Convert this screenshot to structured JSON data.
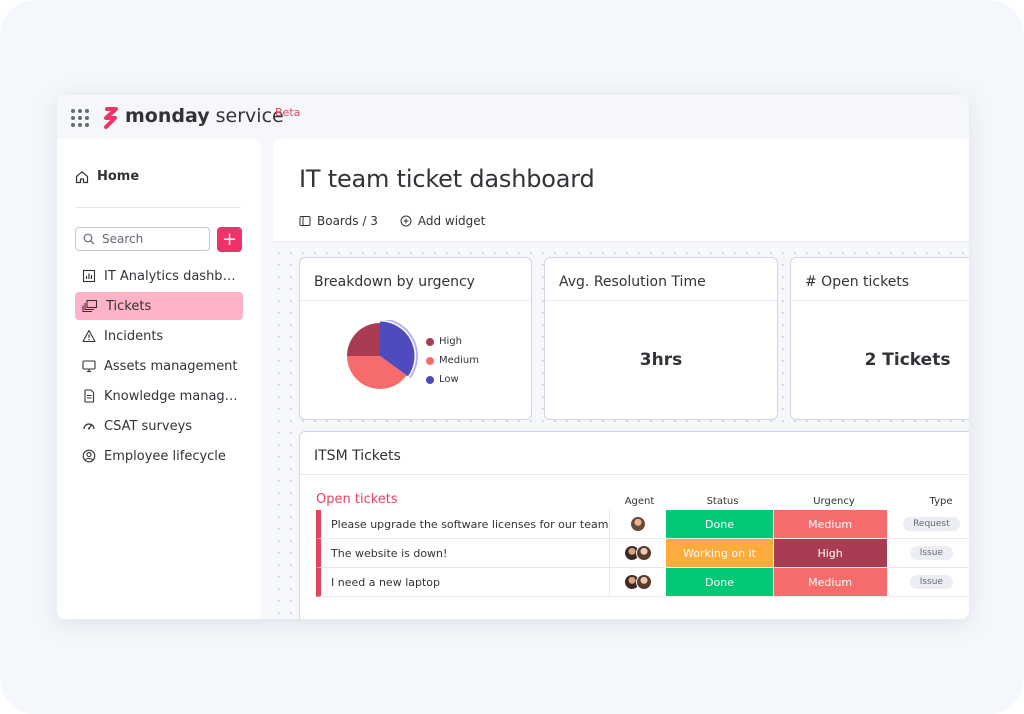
{
  "app": {
    "brand_bold": "monday",
    "brand_light": "service",
    "badge": "Beta",
    "accent": "#f0326b"
  },
  "sidebar": {
    "home_label": "Home",
    "search_placeholder": "Search",
    "add_label": "+",
    "items": [
      {
        "label": "IT Analytics dashboard",
        "icon": "bar-chart-icon"
      },
      {
        "label": "Tickets",
        "icon": "tickets-icon",
        "active": true
      },
      {
        "label": "Incidents",
        "icon": "warning-icon"
      },
      {
        "label": "Assets management",
        "icon": "monitor-icon"
      },
      {
        "label": "Knowledge manag…",
        "icon": "document-icon"
      },
      {
        "label": "CSAT surveys",
        "icon": "gauge-icon"
      },
      {
        "label": "Employee lifecycle",
        "icon": "user-circle-icon"
      }
    ]
  },
  "header": {
    "title": "IT team ticket dashboard",
    "boards_label": "Boards / 3",
    "add_widget_label": "Add widget"
  },
  "widgets": {
    "urgency": {
      "title": "Breakdown by urgency",
      "legend": [
        {
          "label": "High",
          "color": "#a93b52"
        },
        {
          "label": "Medium",
          "color": "#f66b6b"
        },
        {
          "label": "Low",
          "color": "#4e4bbf"
        }
      ]
    },
    "resolution": {
      "title": "Avg. Resolution Time",
      "value": "3hrs"
    },
    "open": {
      "title": "# Open tickets",
      "value": "2 Tickets"
    }
  },
  "chart_data": {
    "type": "pie",
    "categories": [
      "High",
      "Medium",
      "Low"
    ],
    "values": [
      25,
      40,
      35
    ]
  },
  "table": {
    "title": "ITSM Tickets",
    "group_label": "Open tickets",
    "columns": {
      "agent": "Agent",
      "status": "Status",
      "urgency": "Urgency",
      "type": "Type"
    },
    "rows": [
      {
        "name": "Please upgrade the software licenses for our team",
        "status": "Done",
        "status_color": "#00c875",
        "urgency": "Medium",
        "urgency_color": "#f66b6b",
        "type": "Request",
        "agents": 1
      },
      {
        "name": "The website is down!",
        "status": "Working on it",
        "status_color": "#fdab3d",
        "urgency": "High",
        "urgency_color": "#a93b52",
        "type": "Issue",
        "agents": 2
      },
      {
        "name": "I need a new laptop",
        "status": "Done",
        "status_color": "#00c875",
        "urgency": "Medium",
        "urgency_color": "#f66b6b",
        "type": "Issue",
        "agents": 2
      }
    ]
  }
}
